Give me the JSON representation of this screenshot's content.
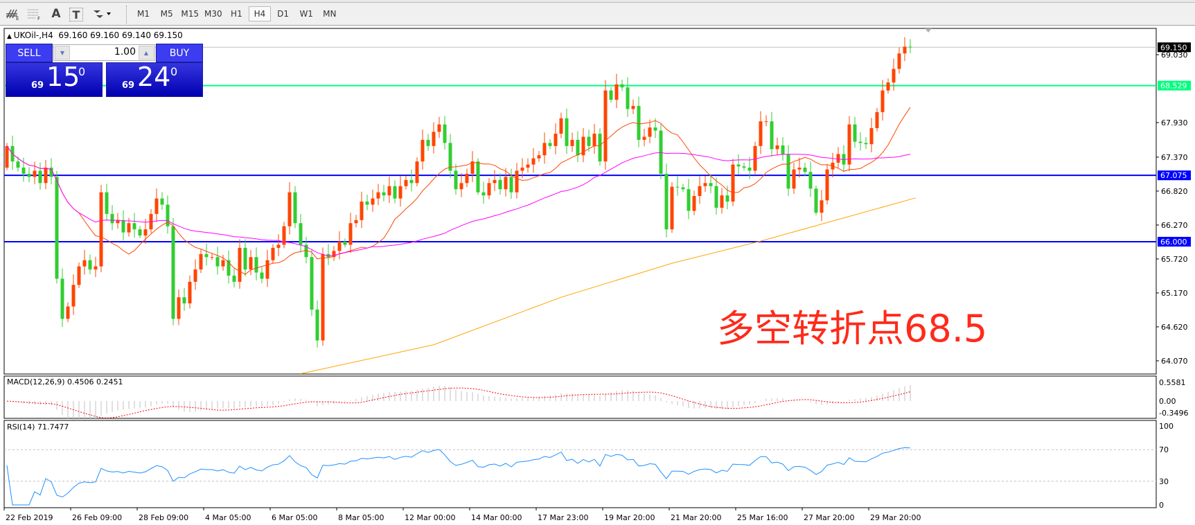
{
  "toolbar": {
    "icons": [
      "elliott-wave-icon",
      "fibonacci-fan-icon",
      "text-icon",
      "text-label-icon",
      "arrows-icon"
    ],
    "icon_glyphs": {
      "text": "A",
      "label": "T"
    },
    "timeframes": [
      "M1",
      "M5",
      "M15",
      "M30",
      "H1",
      "H4",
      "D1",
      "W1",
      "MN"
    ],
    "active_timeframe": "H4"
  },
  "chart_header": {
    "symbol": "UKOil-,H4",
    "ohlc": "69.160 69.160 69.140 69.150"
  },
  "trade_panel": {
    "sell_label": "SELL",
    "buy_label": "BUY",
    "lot": "1.00",
    "sell_price": {
      "prefix": "69",
      "big": "15",
      "sup": "0"
    },
    "buy_price": {
      "prefix": "69",
      "big": "24",
      "sup": "0"
    }
  },
  "annotation": "多空转折点68.5",
  "colors": {
    "up_candle": "#ff4500",
    "down_candle": "#32cd32",
    "ma_fast": "#ff4500",
    "ma_mid": "#ff00ff",
    "ma_slow": "#ffa500",
    "support_line": "#0000ff",
    "pivot_line": "#00ff7f",
    "price_line": "#c0c0c0",
    "rsi": "#1e90ff",
    "macd_hist": "#c0c0c0",
    "macd_signal": "#ff0000"
  },
  "chart_data": {
    "type": "candlestick",
    "symbol": "UKOil-",
    "timeframe": "H4",
    "ylim": [
      63.856,
      69.456
    ],
    "y_ticks": [
      "69.030",
      "67.930",
      "67.370",
      "66.820",
      "66.270",
      "65.720",
      "65.170",
      "64.620",
      "64.070"
    ],
    "x_labels": [
      "22 Feb 2019",
      "26 Feb 09:00",
      "28 Feb 09:00",
      "4 Mar 05:00",
      "6 Mar 05:00",
      "8 Mar 05:00",
      "12 Mar 00:00",
      "14 Mar 00:00",
      "17 Mar 23:00",
      "19 Mar 20:00",
      "21 Mar 20:00",
      "25 Mar 16:00",
      "27 Mar 20:00",
      "29 Mar 20:00"
    ],
    "first_open": 67.2,
    "close": [
      67.55,
      67.3,
      67.2,
      67.1,
      67.05,
      67.15,
      66.95,
      67.2,
      67.05,
      65.4,
      64.75,
      64.95,
      65.3,
      65.6,
      65.7,
      65.55,
      65.6,
      66.8,
      66.45,
      66.3,
      66.35,
      66.15,
      66.3,
      66.2,
      66.1,
      66.2,
      66.45,
      66.7,
      66.6,
      66.25,
      64.75,
      65.1,
      65.0,
      65.35,
      65.55,
      65.8,
      65.75,
      65.75,
      65.6,
      65.7,
      65.45,
      65.35,
      65.9,
      65.55,
      65.75,
      65.5,
      65.4,
      65.7,
      65.9,
      65.95,
      66.25,
      66.8,
      66.3,
      65.95,
      65.75,
      64.9,
      64.4,
      65.8,
      65.75,
      65.85,
      66.0,
      65.95,
      66.3,
      66.35,
      66.65,
      66.6,
      66.7,
      66.8,
      66.75,
      66.9,
      66.7,
      66.9,
      67.0,
      66.95,
      67.3,
      67.65,
      67.55,
      67.78,
      67.9,
      67.6,
      67.15,
      66.85,
      66.95,
      67.1,
      67.3,
      66.8,
      66.75,
      66.95,
      67.0,
      66.85,
      67.05,
      66.8,
      67.15,
      67.2,
      67.25,
      67.35,
      67.4,
      67.6,
      67.55,
      67.75,
      68.0,
      67.55,
      67.65,
      67.4,
      67.7,
      67.55,
      67.75,
      67.3,
      68.45,
      68.3,
      68.55,
      68.5,
      68.15,
      68.2,
      67.65,
      67.7,
      67.85,
      67.8,
      67.1,
      66.2,
      66.89,
      66.88,
      66.85,
      66.5,
      66.74,
      66.9,
      66.95,
      66.9,
      66.55,
      66.75,
      66.65,
      67.25,
      67.22,
      67.2,
      67.15,
      67.55,
      67.95,
      67.95,
      67.5,
      67.56,
      67.42,
      66.86,
      67.17,
      67.2,
      67.13,
      66.86,
      66.47,
      66.67,
      67.17,
      67.28,
      67.42,
      67.25,
      67.9,
      67.62,
      67.6,
      67.58,
      67.84,
      68.1,
      68.45,
      68.58,
      68.8,
      69.05,
      69.16,
      69.15
    ],
    "ma_fast_period": 14,
    "ma_mid_period": 50,
    "ma_slow_points": [
      [
        53,
        63.86
      ],
      [
        77,
        64.33
      ],
      [
        100,
        65.1
      ],
      [
        120,
        65.65
      ],
      [
        136,
        66.01
      ],
      [
        164,
        66.71
      ]
    ],
    "levels": [
      {
        "value": 69.15,
        "label": "69.150",
        "kind": "price"
      },
      {
        "value": 68.529,
        "label": "68.529",
        "kind": "pivot"
      },
      {
        "value": 67.075,
        "label": "67.075",
        "kind": "support"
      },
      {
        "value": 66.0,
        "label": "66.000",
        "kind": "support"
      }
    ],
    "macd": {
      "title": "MACD(12,26,9) 0.4506 0.2451",
      "ylim": [
        -0.514,
        0.743
      ],
      "ticks": [
        "0.5581",
        "0.00",
        "-0.3496"
      ],
      "tick_values": [
        0.5581,
        0,
        -0.3496
      ]
    },
    "rsi": {
      "title": "RSI(14) 71.7477",
      "ylim": [
        0,
        100
      ],
      "ticks": [
        "100",
        "70",
        "30",
        "0"
      ],
      "levels": [
        70,
        30
      ]
    }
  }
}
